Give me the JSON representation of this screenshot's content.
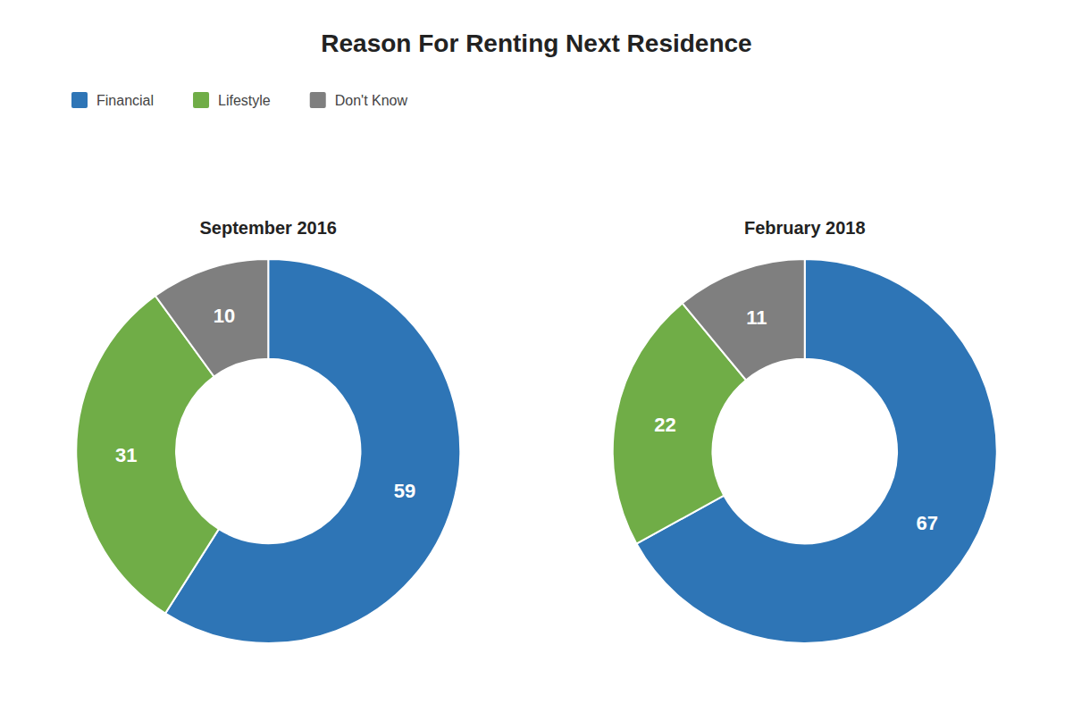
{
  "chart_data": {
    "type": "donut",
    "title": "Reason For Renting Next Residence",
    "categories": [
      "Financial",
      "Lifestyle",
      "Don't Know"
    ],
    "colors": [
      "#2E75B6",
      "#70AD47",
      "#7F7F7F"
    ],
    "series": [
      {
        "name": "September 2016",
        "values": [
          59,
          31,
          10
        ]
      },
      {
        "name": "February 2018",
        "values": [
          67,
          22,
          11
        ]
      }
    ],
    "data_labels": true,
    "legend": "top-left"
  }
}
